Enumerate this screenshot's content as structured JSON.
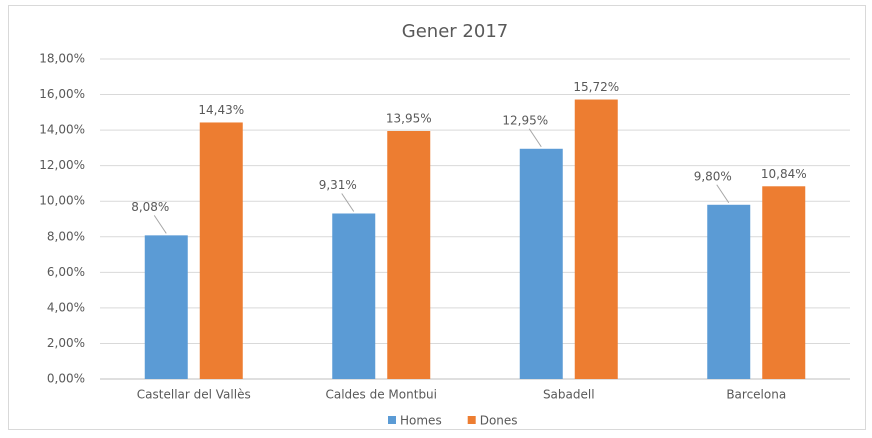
{
  "chart_data": {
    "type": "bar",
    "title": "Gener 2017",
    "categories": [
      "Castellar del Vallès",
      "Caldes de Montbui",
      "Sabadell",
      "Barcelona"
    ],
    "series": [
      {
        "name": "Homes",
        "color": "#5b9bd5",
        "values": [
          8.08,
          9.31,
          12.95,
          9.8
        ],
        "value_labels": [
          "8,08%",
          "9,31%",
          "12,95%",
          "9,80%"
        ]
      },
      {
        "name": "Dones",
        "color": "#ed7d31",
        "values": [
          14.43,
          13.95,
          15.72,
          10.84
        ],
        "value_labels": [
          "14,43%",
          "13,95%",
          "15,72%",
          "10,84%"
        ]
      }
    ],
    "ylim": [
      0,
      18
    ],
    "yticks": [
      {
        "value": 0,
        "label": "0,00%"
      },
      {
        "value": 2,
        "label": "2,00%"
      },
      {
        "value": 4,
        "label": "4,00%"
      },
      {
        "value": 6,
        "label": "6,00%"
      },
      {
        "value": 8,
        "label": "8,00%"
      },
      {
        "value": 10,
        "label": "10,00%"
      },
      {
        "value": 12,
        "label": "12,00%"
      },
      {
        "value": 14,
        "label": "14,00%"
      },
      {
        "value": 16,
        "label": "16,00%"
      },
      {
        "value": 18,
        "label": "18,00%"
      }
    ],
    "grid": true,
    "legend": "bottom"
  }
}
